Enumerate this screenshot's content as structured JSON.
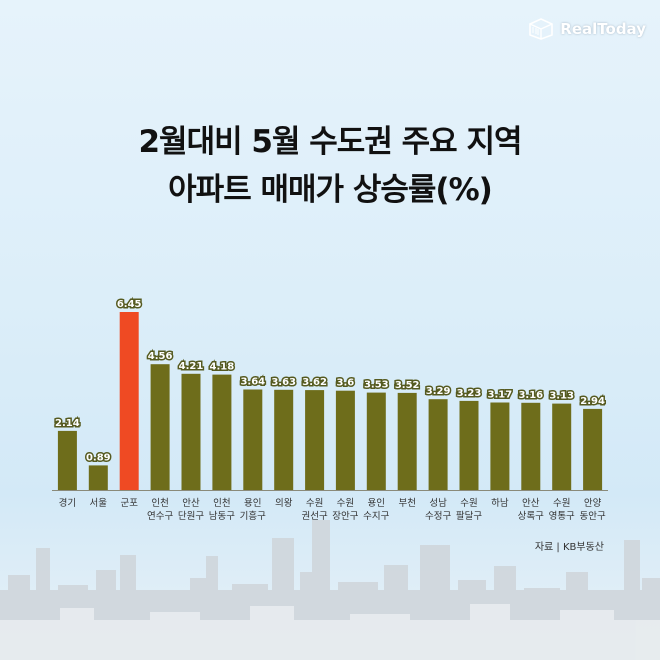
{
  "brand": {
    "name": "RealToday",
    "icon": "building-cube-icon"
  },
  "title_lines": [
    "2월대비 5월 수도권 주요 지역",
    "아파트 매매가 상승률(%)"
  ],
  "source": "자료 | KB부동산",
  "colors": {
    "bar": "#6e6d1b",
    "highlight": "#ef4a23",
    "axis": "#8a8a7a"
  },
  "chart_data": {
    "type": "bar",
    "title": "2월대비 5월 수도권 주요 지역 아파트 매매가 상승률(%)",
    "categories": [
      [
        "경기"
      ],
      [
        "서울"
      ],
      [
        "군포"
      ],
      [
        "인천",
        "연수구"
      ],
      [
        "안산",
        "단원구"
      ],
      [
        "인천",
        "남동구"
      ],
      [
        "용인",
        "기흥구"
      ],
      [
        "의왕"
      ],
      [
        "수원",
        "권선구"
      ],
      [
        "수원",
        "장안구"
      ],
      [
        "용인",
        "수지구"
      ],
      [
        "부천"
      ],
      [
        "성남",
        "수정구"
      ],
      [
        "수원",
        "팔달구"
      ],
      [
        "하남"
      ],
      [
        "안산",
        "상록구"
      ],
      [
        "수원",
        "영통구"
      ],
      [
        "안양",
        "동안구"
      ]
    ],
    "values": [
      2.14,
      0.89,
      6.45,
      4.56,
      4.21,
      4.18,
      3.64,
      3.63,
      3.62,
      3.6,
      3.53,
      3.52,
      3.29,
      3.23,
      3.17,
      3.16,
      3.13,
      2.94
    ],
    "value_labels": [
      "2.14",
      "0.89",
      "6.45",
      "4.56",
      "4.21",
      "4.18",
      "3.64",
      "3.63",
      "3.62",
      "3.6",
      "3.53",
      "3.52",
      "3.29",
      "3.23",
      "3.17",
      "3.16",
      "3.13",
      "2.94"
    ],
    "highlight_index": 2,
    "ylim": [
      0,
      6.45
    ],
    "xlabel": "",
    "ylabel": "",
    "grid": false,
    "legend": "none"
  }
}
